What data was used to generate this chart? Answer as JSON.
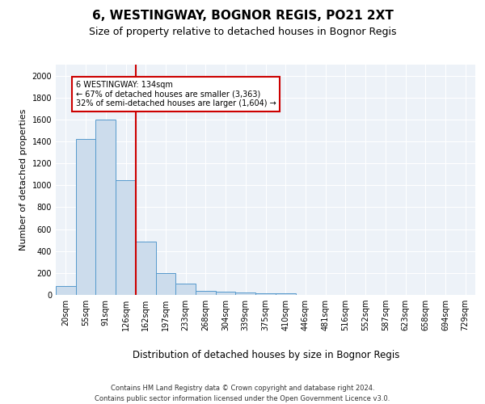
{
  "title1": "6, WESTINGWAY, BOGNOR REGIS, PO21 2XT",
  "title2": "Size of property relative to detached houses in Bognor Regis",
  "xlabel": "Distribution of detached houses by size in Bognor Regis",
  "ylabel": "Number of detached properties",
  "footnote": "Contains HM Land Registry data © Crown copyright and database right 2024.\nContains public sector information licensed under the Open Government Licence v3.0.",
  "bin_labels": [
    "20sqm",
    "55sqm",
    "91sqm",
    "126sqm",
    "162sqm",
    "197sqm",
    "233sqm",
    "268sqm",
    "304sqm",
    "339sqm",
    "375sqm",
    "410sqm",
    "446sqm",
    "481sqm",
    "516sqm",
    "552sqm",
    "587sqm",
    "623sqm",
    "658sqm",
    "694sqm",
    "729sqm"
  ],
  "bar_values": [
    80,
    1420,
    1600,
    1050,
    490,
    200,
    100,
    40,
    28,
    20,
    18,
    15,
    0,
    0,
    0,
    0,
    0,
    0,
    0,
    0,
    0
  ],
  "bar_color": "#ccdcec",
  "bar_edgecolor": "#5599cc",
  "red_line_x": 3.5,
  "red_line_color": "#cc0000",
  "annotation_title": "6 WESTINGWAY: 134sqm",
  "annotation_line1": "← 67% of detached houses are smaller (3,363)",
  "annotation_line2": "32% of semi-detached houses are larger (1,604) →",
  "annotation_box_facecolor": "#ffffff",
  "annotation_box_edgecolor": "#cc0000",
  "ylim": [
    0,
    2100
  ],
  "yticks": [
    0,
    200,
    400,
    600,
    800,
    1000,
    1200,
    1400,
    1600,
    1800,
    2000
  ],
  "bg_color": "#edf2f8",
  "grid_color": "#ffffff",
  "title1_fontsize": 11,
  "title2_fontsize": 9,
  "xlabel_fontsize": 8.5,
  "ylabel_fontsize": 8,
  "tick_fontsize": 7,
  "footnote_fontsize": 6
}
